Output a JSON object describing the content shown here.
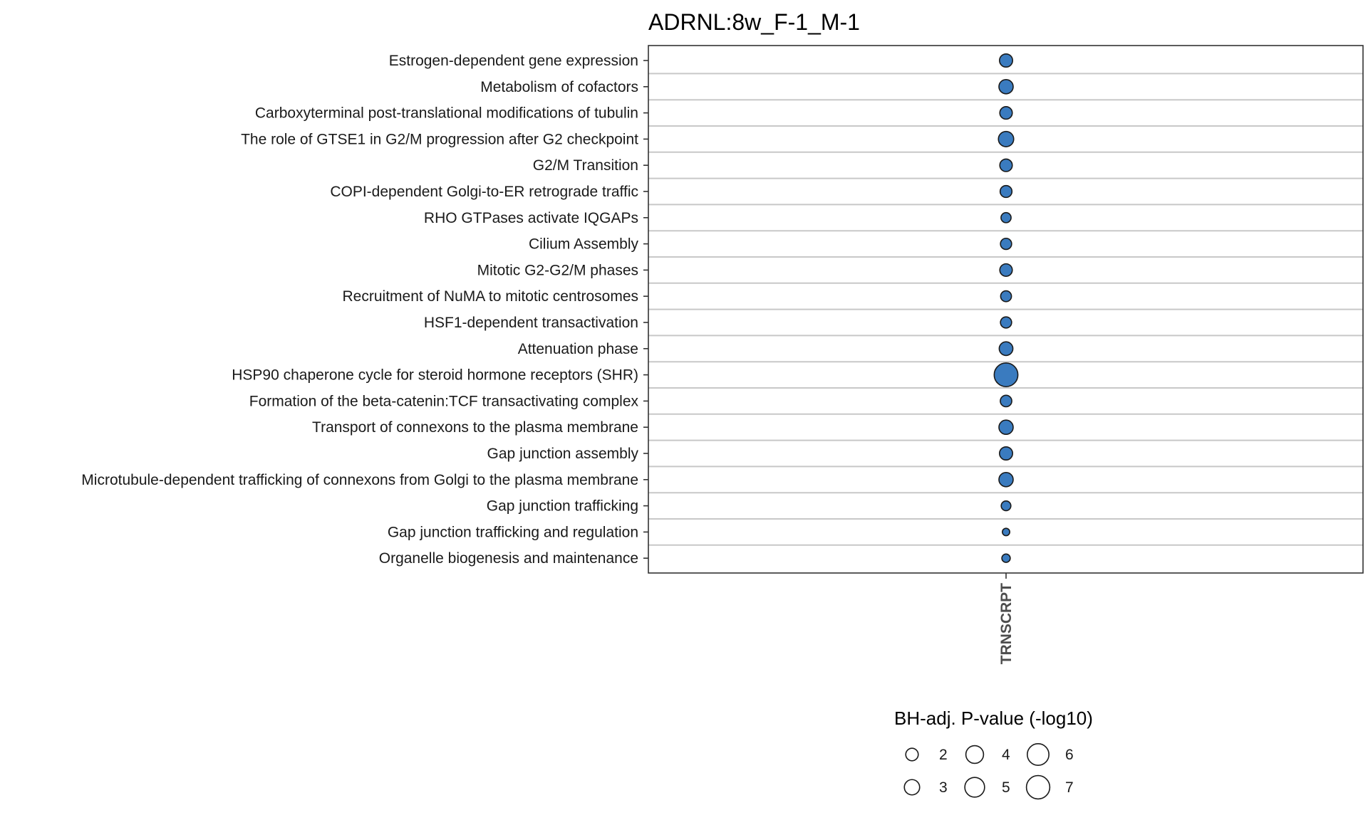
{
  "chart_data": {
    "type": "scatter",
    "title": "ADRNL:8w_F-1_M-1",
    "x_categories": [
      "TRNSCRPT"
    ],
    "y_categories": [
      "Estrogen-dependent gene expression",
      "Metabolism of cofactors",
      "Carboxyterminal post-translational modifications of tubulin",
      "The role of GTSE1 in G2/M progression after G2 checkpoint",
      "G2/M Transition",
      "COPI-dependent Golgi-to-ER retrograde traffic",
      "RHO GTPases activate IQGAPs",
      "Cilium Assembly",
      "Mitotic G2-G2/M phases",
      "Recruitment of NuMA to mitotic centrosomes",
      "HSF1-dependent transactivation",
      "Attenuation phase",
      "HSP90 chaperone cycle for steroid hormone receptors (SHR)",
      "Formation of the beta-catenin:TCF transactivating complex",
      "Transport of connexons to the plasma membrane",
      "Gap junction assembly",
      "Microtubule-dependent trafficking of connexons from Golgi to the plasma membrane",
      "Gap junction trafficking",
      "Gap junction trafficking and regulation",
      "Organelle biogenesis and maintenance"
    ],
    "points": [
      {
        "x": "TRNSCRPT",
        "y": "Estrogen-dependent gene expression",
        "value": 2.2
      },
      {
        "x": "TRNSCRPT",
        "y": "Metabolism of cofactors",
        "value": 2.6
      },
      {
        "x": "TRNSCRPT",
        "y": "Carboxyterminal post-translational modifications of tubulin",
        "value": 2.0
      },
      {
        "x": "TRNSCRPT",
        "y": "The role of GTSE1 in G2/M progression after G2 checkpoint",
        "value": 3.0
      },
      {
        "x": "TRNSCRPT",
        "y": "G2/M Transition",
        "value": 2.0
      },
      {
        "x": "TRNSCRPT",
        "y": "COPI-dependent Golgi-to-ER retrograde traffic",
        "value": 1.8
      },
      {
        "x": "TRNSCRPT",
        "y": "RHO GTPases activate IQGAPs",
        "value": 1.3
      },
      {
        "x": "TRNSCRPT",
        "y": "Cilium Assembly",
        "value": 1.6
      },
      {
        "x": "TRNSCRPT",
        "y": "Mitotic G2-G2/M phases",
        "value": 2.0
      },
      {
        "x": "TRNSCRPT",
        "y": "Recruitment of NuMA to mitotic centrosomes",
        "value": 1.5
      },
      {
        "x": "TRNSCRPT",
        "y": "HSF1-dependent transactivation",
        "value": 1.6
      },
      {
        "x": "TRNSCRPT",
        "y": "Attenuation phase",
        "value": 2.4
      },
      {
        "x": "TRNSCRPT",
        "y": "HSP90 chaperone cycle for steroid hormone receptors (SHR)",
        "value": 7.2
      },
      {
        "x": "TRNSCRPT",
        "y": "Formation of the beta-catenin:TCF transactivating complex",
        "value": 1.7
      },
      {
        "x": "TRNSCRPT",
        "y": "Transport of connexons to the plasma membrane",
        "value": 2.6
      },
      {
        "x": "TRNSCRPT",
        "y": "Gap junction assembly",
        "value": 2.2
      },
      {
        "x": "TRNSCRPT",
        "y": "Microtubule-dependent trafficking of connexons from Golgi to the plasma membrane",
        "value": 2.6
      },
      {
        "x": "TRNSCRPT",
        "y": "Gap junction trafficking",
        "value": 1.2
      },
      {
        "x": "TRNSCRPT",
        "y": "Gap junction trafficking and regulation",
        "value": 0.7
      },
      {
        "x": "TRNSCRPT",
        "y": "Organelle biogenesis and maintenance",
        "value": 0.9
      }
    ],
    "size_legend": {
      "title": "BH-adj. P-value (-log10)",
      "values": [
        2,
        3,
        4,
        5,
        6,
        7
      ],
      "labels": [
        "2",
        "3",
        "4",
        "5",
        "6",
        "7"
      ]
    },
    "colors": {
      "point_fill": "#3a7bbf",
      "point_stroke": "#1a1a1a",
      "gridline": "#c8c8c8",
      "panel_border": "#333333"
    },
    "grid": true,
    "legend_position": "bottom"
  }
}
